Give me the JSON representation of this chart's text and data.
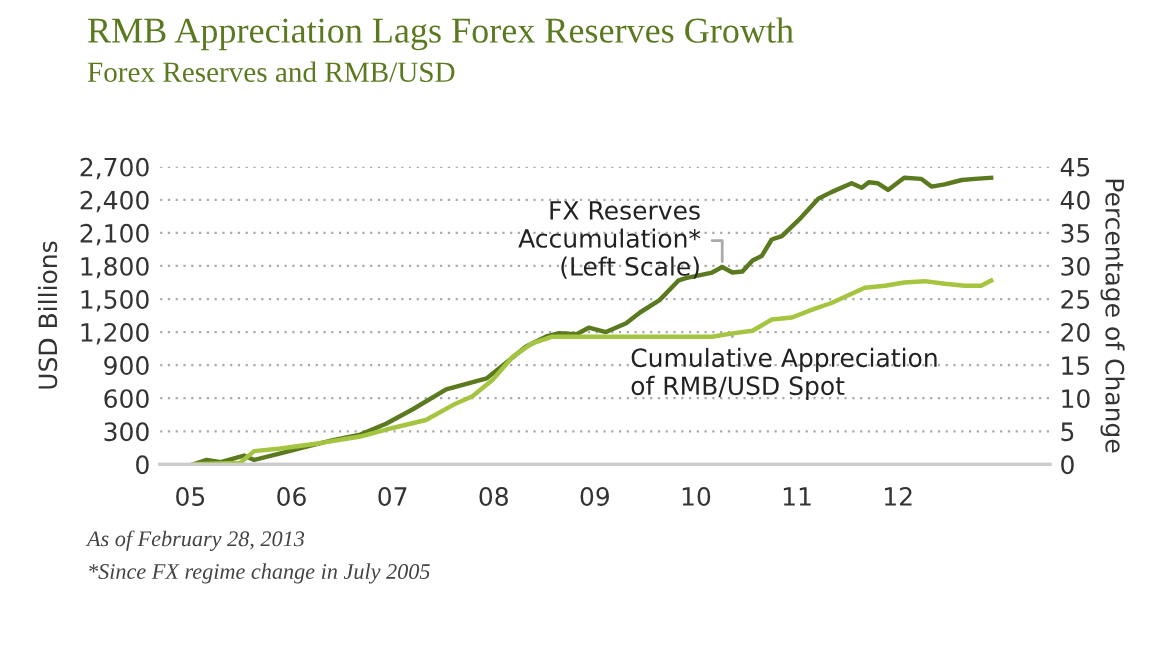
{
  "chart_data": {
    "type": "line",
    "title": "RMB Appreciation Lags Forex Reserves Growth",
    "subtitle": "Forex Reserves and RMB/USD",
    "ylabel": "USD Billions",
    "y2label": "Percentage of Change",
    "series": [
      {
        "name": "FX Reserves\nAccumulation*\n(Left Scale)",
        "color": "#5b7a1f",
        "x": [
          2005.03,
          2005.16,
          2005.3,
          2005.53,
          2005.63,
          2005.89,
          2006.15,
          2006.41,
          2006.68,
          2006.94,
          2007.2,
          2007.53,
          2007.73,
          2007.93,
          2008.12,
          2008.32,
          2008.52,
          2008.65,
          2008.82,
          2008.94,
          2009.11,
          2009.31,
          2009.45,
          2009.64,
          2009.83,
          2009.9,
          2010.16,
          2010.26,
          2010.36,
          2010.46,
          2010.56,
          2010.65,
          2010.75,
          2010.85,
          2011.02,
          2011.21,
          2011.34,
          2011.54,
          2011.64,
          2011.71,
          2011.8,
          2011.9,
          2012.06,
          2012.23,
          2012.33,
          2012.46,
          2012.63,
          2012.76,
          2012.92
        ],
        "values": [
          0,
          40,
          20,
          80,
          40,
          100,
          160,
          220,
          270,
          370,
          500,
          680,
          730,
          780,
          920,
          1070,
          1160,
          1190,
          1180,
          1240,
          1200,
          1280,
          1380,
          1490,
          1670,
          1690,
          1740,
          1790,
          1740,
          1750,
          1850,
          1890,
          2040,
          2070,
          2220,
          2410,
          2470,
          2550,
          2510,
          2560,
          2550,
          2490,
          2600,
          2590,
          2520,
          2540,
          2580,
          2590,
          2600
        ]
      },
      {
        "name": "Cumulative Appreciation\nof RMB/USD Spot",
        "color": "#a5c440",
        "axis": "y2",
        "x": [
          2005.03,
          2005.49,
          2005.63,
          2005.89,
          2006.28,
          2006.68,
          2007.0,
          2007.33,
          2007.6,
          2007.79,
          2007.99,
          2008.19,
          2008.38,
          2008.58,
          2008.78,
          2009.64,
          2010.16,
          2010.36,
          2010.56,
          2010.75,
          2010.95,
          2011.15,
          2011.34,
          2011.54,
          2011.67,
          2011.87,
          2012.06,
          2012.26,
          2012.46,
          2012.66,
          2012.82,
          2012.92
        ],
        "values": [
          0,
          0.2,
          2.0,
          2.4,
          3.2,
          4.2,
          5.5,
          6.7,
          9.0,
          10.3,
          12.8,
          16.3,
          18.3,
          19.3,
          19.3,
          19.3,
          19.3,
          19.8,
          20.2,
          21.9,
          22.2,
          23.4,
          24.4,
          25.8,
          26.7,
          27.0,
          27.5,
          27.7,
          27.3,
          27.0,
          27.0,
          27.8
        ]
      }
    ],
    "xlim": [
      2004.7,
      2013.5
    ],
    "xticks": [
      {
        "value": 2005,
        "label": "05"
      },
      {
        "value": 2006,
        "label": "06"
      },
      {
        "value": 2007,
        "label": "07"
      },
      {
        "value": 2008,
        "label": "08"
      },
      {
        "value": 2009,
        "label": "09"
      },
      {
        "value": 2010,
        "label": "10"
      },
      {
        "value": 2011,
        "label": "11"
      },
      {
        "value": 2012,
        "label": "12"
      }
    ],
    "ylim": [
      0,
      2700
    ],
    "yticks": [
      0,
      {
        "value": 300,
        "label": "300"
      },
      {
        "value": 600,
        "label": "600"
      },
      {
        "value": 900,
        "label": "900"
      },
      {
        "value": 1200,
        "label": "1,200"
      },
      {
        "value": 1500,
        "label": "1,500"
      },
      {
        "value": 1800,
        "label": "1,800"
      },
      {
        "value": 2100,
        "label": "2,100"
      },
      {
        "value": 2400,
        "label": "2,400"
      },
      {
        "value": 2700,
        "label": "2,700"
      }
    ],
    "y2lim": [
      0,
      45
    ],
    "y2ticks": [
      0,
      5,
      10,
      15,
      20,
      25,
      30,
      35,
      40,
      45
    ],
    "grid": "y",
    "legend": false,
    "marker": "none",
    "line_style": "solid",
    "annotations": [
      "As of February 28, 2013",
      "*Since FX regime change in July 2005"
    ]
  }
}
